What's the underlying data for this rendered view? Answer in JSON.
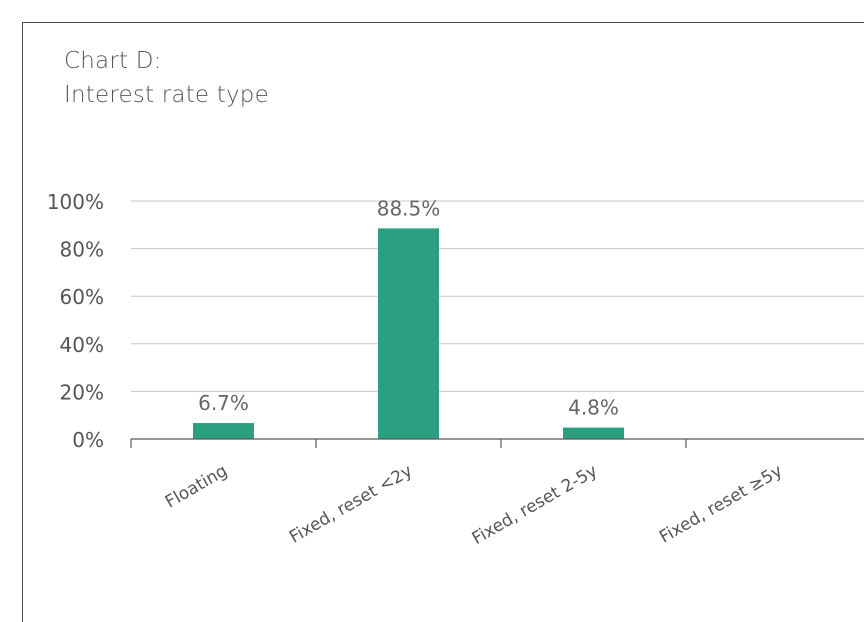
{
  "title_line1": "Chart D:",
  "title_line2": "Interest rate type",
  "chart_data": {
    "type": "bar",
    "title": "Chart D: Interest rate type",
    "categories": [
      "Floating",
      "Fixed, reset <2y",
      "Fixed, reset 2-5y",
      "Fixed, reset ≥5y"
    ],
    "values": [
      6.7,
      88.5,
      4.8,
      0
    ],
    "data_labels": [
      "6.7%",
      "88.5%",
      "4.8%",
      ""
    ],
    "yticks": [
      "0%",
      "20%",
      "40%",
      "60%",
      "80%",
      "100%"
    ],
    "ylim": [
      0,
      100
    ],
    "xlabel": "",
    "ylabel": "",
    "grid": true,
    "bar_color": "#2aa080"
  }
}
